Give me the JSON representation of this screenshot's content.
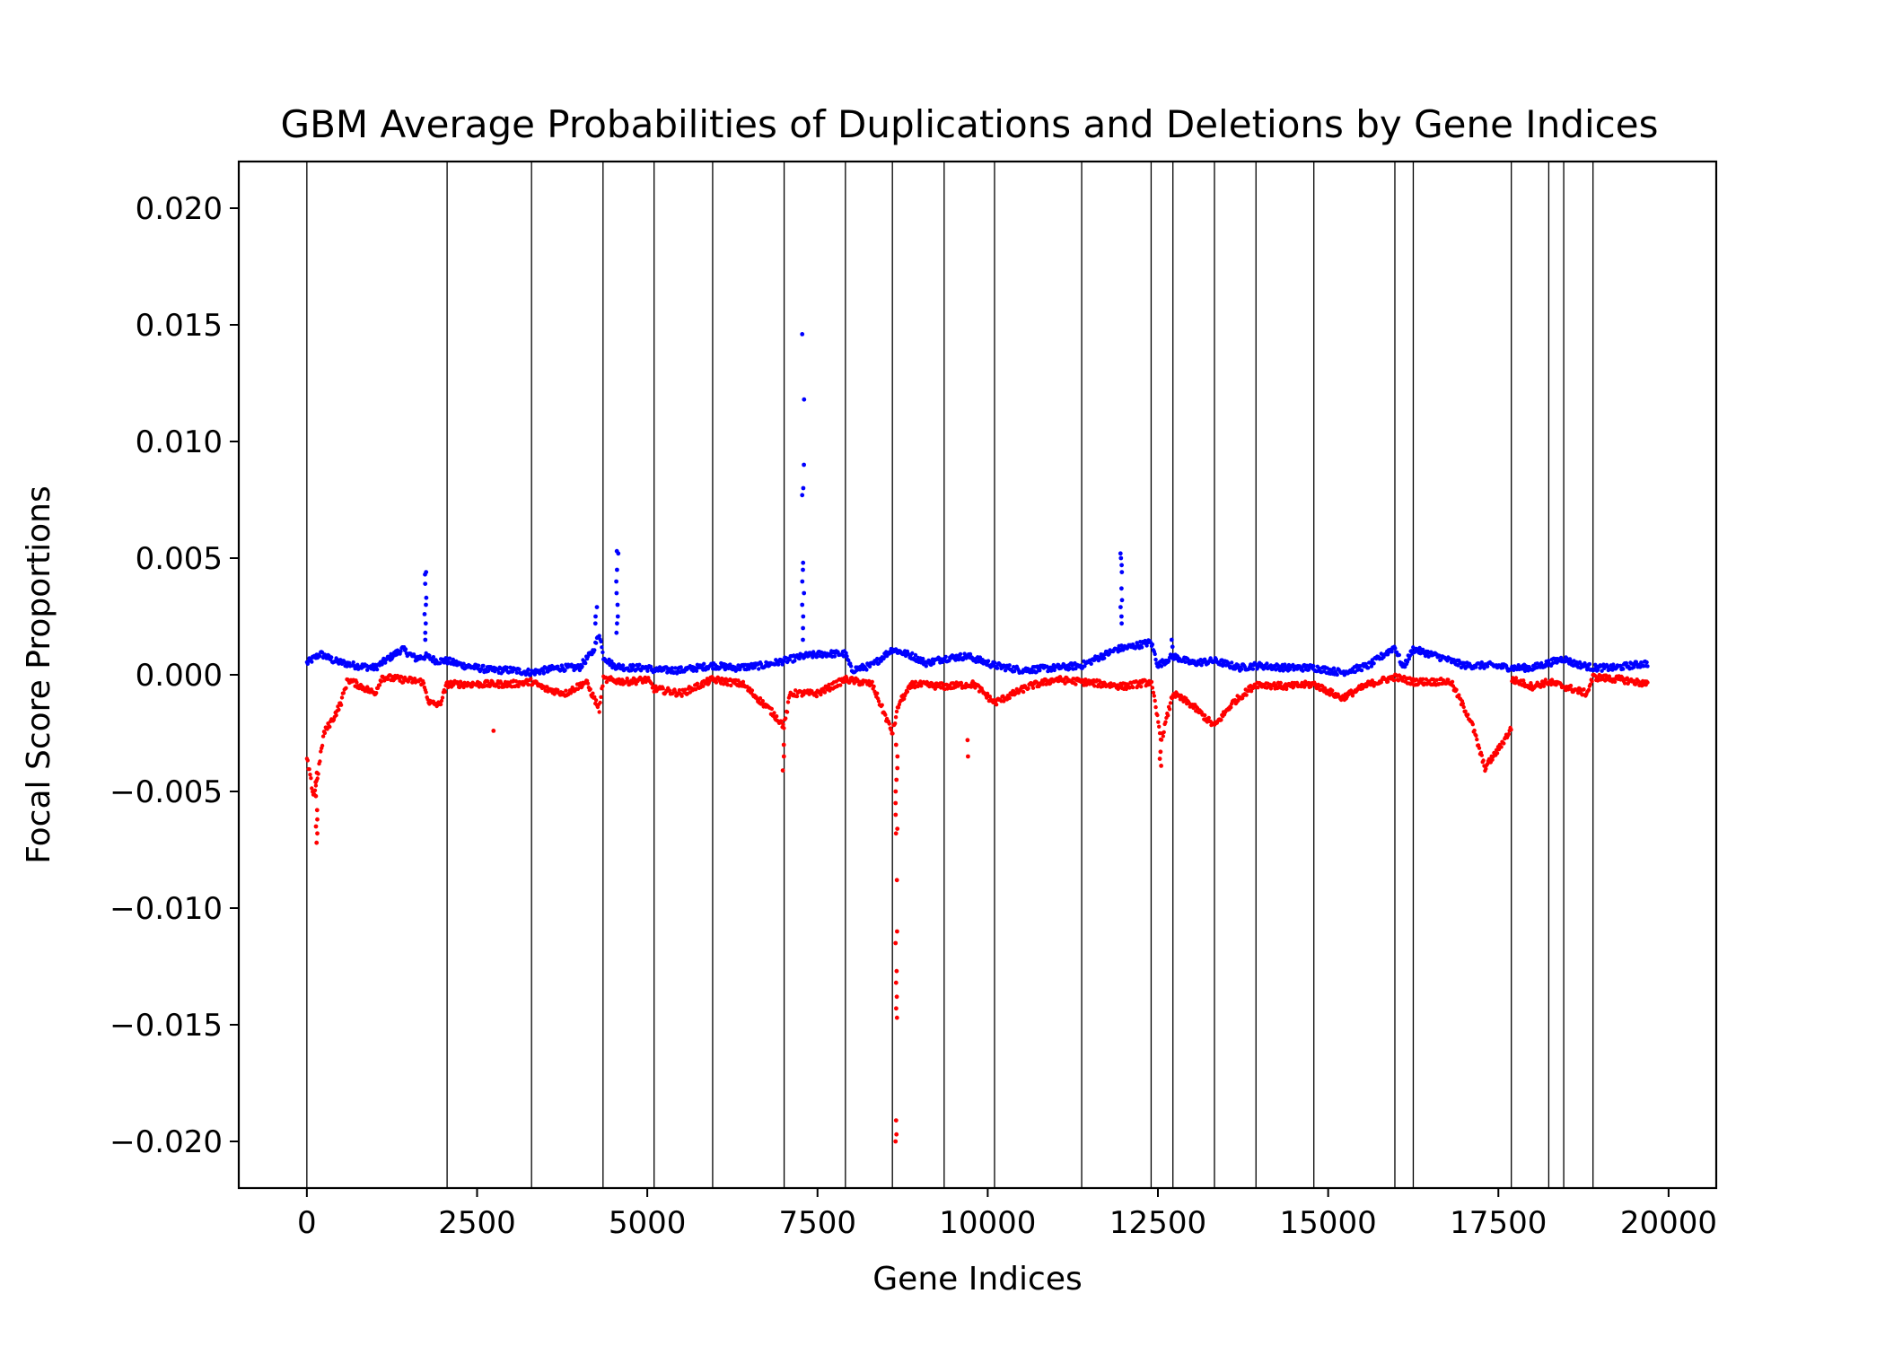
{
  "chart_data": {
    "type": "scatter",
    "title": "GBM Average Probabilities of Duplications and Deletions by Gene Indices",
    "xlabel": "Gene Indices",
    "ylabel": "Focal Score Proportions",
    "xlim": [
      -1000,
      20700
    ],
    "ylim": [
      -0.022,
      0.022
    ],
    "xticks": [
      0,
      2500,
      5000,
      7500,
      10000,
      12500,
      15000,
      17500,
      20000
    ],
    "xtick_labels": [
      "0",
      "2500",
      "5000",
      "7500",
      "10000",
      "12500",
      "15000",
      "17500",
      "20000"
    ],
    "yticks": [
      -0.02,
      -0.015,
      -0.01,
      -0.005,
      0.0,
      0.005,
      0.01,
      0.015,
      0.02
    ],
    "ytick_labels": [
      "−0.020",
      "−0.015",
      "−0.010",
      "−0.005",
      "0.000",
      "0.005",
      "0.010",
      "0.015",
      "0.020"
    ],
    "chromosome_boundaries": [
      0,
      2060,
      3300,
      4350,
      5100,
      5960,
      7010,
      7910,
      8600,
      9360,
      10100,
      11380,
      12400,
      12720,
      13330,
      13940,
      14790,
      15980,
      16250,
      17690,
      18240,
      18460,
      18890
    ],
    "grid": false,
    "legend": "none",
    "series": [
      {
        "color": "#0000ff",
        "baseline": [
          [
            0,
            0.0005
          ],
          [
            200,
            0.0009
          ],
          [
            400,
            0.0006
          ],
          [
            700,
            0.0004
          ],
          [
            1000,
            0.0003
          ],
          [
            1200,
            0.0007
          ],
          [
            1400,
            0.0011
          ],
          [
            1600,
            0.0007
          ],
          [
            1750,
            0.0008
          ],
          [
            1900,
            0.0006
          ],
          [
            2060,
            0.0006
          ],
          [
            2300,
            0.0004
          ],
          [
            2700,
            0.0002
          ],
          [
            3000,
            0.0002
          ],
          [
            3300,
            0.0001
          ],
          [
            3700,
            0.0003
          ],
          [
            4000,
            0.0003
          ],
          [
            4200,
            0.001
          ],
          [
            4300,
            0.0018
          ],
          [
            4350,
            0.0008
          ],
          [
            4500,
            0.0004
          ],
          [
            4700,
            0.0003
          ],
          [
            5000,
            0.0003
          ],
          [
            5100,
            0.0002
          ],
          [
            5500,
            0.0002
          ],
          [
            5960,
            0.0004
          ],
          [
            6300,
            0.0003
          ],
          [
            6700,
            0.0004
          ],
          [
            7010,
            0.0006
          ],
          [
            7300,
            0.0008
          ],
          [
            7600,
            0.0009
          ],
          [
            7910,
            0.0009
          ],
          [
            8000,
            0.0002
          ],
          [
            8300,
            0.0004
          ],
          [
            8600,
            0.0011
          ],
          [
            8900,
            0.0008
          ],
          [
            9100,
            0.0005
          ],
          [
            9360,
            0.0007
          ],
          [
            9700,
            0.0008
          ],
          [
            10100,
            0.0004
          ],
          [
            10500,
            0.0002
          ],
          [
            11000,
            0.0003
          ],
          [
            11380,
            0.0004
          ],
          [
            11600,
            0.0007
          ],
          [
            11900,
            0.0011
          ],
          [
            12100,
            0.0012
          ],
          [
            12400,
            0.0014
          ],
          [
            12500,
            0.0004
          ],
          [
            12720,
            0.0008
          ],
          [
            13000,
            0.0005
          ],
          [
            13330,
            0.0006
          ],
          [
            13700,
            0.0003
          ],
          [
            13940,
            0.0004
          ],
          [
            14400,
            0.0003
          ],
          [
            14790,
            0.0003
          ],
          [
            15200,
            0.0001
          ],
          [
            15600,
            0.0004
          ],
          [
            15980,
            0.0012
          ],
          [
            16100,
            0.0003
          ],
          [
            16250,
            0.0011
          ],
          [
            16600,
            0.0008
          ],
          [
            17000,
            0.0004
          ],
          [
            17400,
            0.0004
          ],
          [
            17690,
            0.0003
          ],
          [
            18000,
            0.0003
          ],
          [
            18240,
            0.0005
          ],
          [
            18460,
            0.0007
          ],
          [
            18600,
            0.0005
          ],
          [
            18890,
            0.0003
          ],
          [
            19200,
            0.0003
          ],
          [
            19700,
            0.0005
          ]
        ],
        "spikes": [
          {
            "x": 1740,
            "values": [
              0.0044,
              0.0043,
              0.0039,
              0.0033,
              0.003,
              0.0026,
              0.0022,
              0.0018,
              0.0015
            ]
          },
          {
            "x": 4250,
            "values": [
              0.0029,
              0.0025,
              0.0022
            ]
          },
          {
            "x": 4560,
            "values": [
              0.0053,
              0.0052,
              0.0045,
              0.004,
              0.0035,
              0.003,
              0.0025,
              0.0022,
              0.0018
            ]
          },
          {
            "x": 7290,
            "values": [
              0.0146,
              0.0118,
              0.009,
              0.008,
              0.0077,
              0.0048,
              0.0045,
              0.004,
              0.0035,
              0.003,
              0.0025,
              0.002,
              0.0015
            ]
          },
          {
            "x": 11960,
            "values": [
              0.0052,
              0.005,
              0.0047,
              0.0044,
              0.0037,
              0.0032,
              0.0029,
              0.0025,
              0.0022
            ]
          },
          {
            "x": 12700,
            "values": [
              0.0015,
              0.0012
            ]
          }
        ]
      },
      {
        "color": "#ff0000",
        "baseline": [
          [
            0,
            -0.0036
          ],
          [
            100,
            -0.0052
          ],
          [
            150,
            -0.0045
          ],
          [
            250,
            -0.0025
          ],
          [
            400,
            -0.0018
          ],
          [
            500,
            -0.0012
          ],
          [
            600,
            -0.0002
          ],
          [
            800,
            -0.0005
          ],
          [
            1000,
            -0.0008
          ],
          [
            1100,
            -0.0001
          ],
          [
            1400,
            -0.0002
          ],
          [
            1700,
            -0.0003
          ],
          [
            1800,
            -0.0012
          ],
          [
            1950,
            -0.0013
          ],
          [
            2060,
            -0.0004
          ],
          [
            2400,
            -0.0004
          ],
          [
            3000,
            -0.0004
          ],
          [
            3300,
            -0.0003
          ],
          [
            3500,
            -0.0006
          ],
          [
            3800,
            -0.0008
          ],
          [
            4100,
            -0.0003
          ],
          [
            4300,
            -0.0015
          ],
          [
            4350,
            -0.0002
          ],
          [
            4700,
            -0.0003
          ],
          [
            5000,
            -0.0002
          ],
          [
            5100,
            -0.0006
          ],
          [
            5500,
            -0.0008
          ],
          [
            5960,
            -0.0002
          ],
          [
            6400,
            -0.0004
          ],
          [
            6800,
            -0.0015
          ],
          [
            7010,
            -0.0022
          ],
          [
            7100,
            -0.0008
          ],
          [
            7500,
            -0.0008
          ],
          [
            7910,
            -0.0002
          ],
          [
            8300,
            -0.0004
          ],
          [
            8600,
            -0.0025
          ],
          [
            8700,
            -0.0012
          ],
          [
            8900,
            -0.0004
          ],
          [
            9360,
            -0.0005
          ],
          [
            9800,
            -0.0004
          ],
          [
            10100,
            -0.0012
          ],
          [
            10600,
            -0.0005
          ],
          [
            11000,
            -0.0002
          ],
          [
            11380,
            -0.0003
          ],
          [
            11700,
            -0.0004
          ],
          [
            12000,
            -0.0005
          ],
          [
            12400,
            -0.0003
          ],
          [
            12550,
            -0.0028
          ],
          [
            12720,
            -0.0008
          ],
          [
            13000,
            -0.0013
          ],
          [
            13330,
            -0.0022
          ],
          [
            13600,
            -0.0012
          ],
          [
            13940,
            -0.0004
          ],
          [
            14400,
            -0.0005
          ],
          [
            14790,
            -0.0004
          ],
          [
            15200,
            -0.001
          ],
          [
            15600,
            -0.0004
          ],
          [
            15980,
            -0.0001
          ],
          [
            16250,
            -0.0003
          ],
          [
            16800,
            -0.0003
          ],
          [
            17100,
            -0.002
          ],
          [
            17300,
            -0.004
          ],
          [
            17500,
            -0.0032
          ],
          [
            17690,
            -0.0023
          ],
          [
            17700,
            -0.0002
          ],
          [
            18000,
            -0.0005
          ],
          [
            18240,
            -0.0003
          ],
          [
            18460,
            -0.0005
          ],
          [
            18800,
            -0.0008
          ],
          [
            18890,
            -0.0001
          ],
          [
            19300,
            -0.0002
          ],
          [
            19700,
            -0.0004
          ]
        ],
        "spikes": [
          {
            "x": 140,
            "values": [
              -0.0072,
              -0.0068,
              -0.0065,
              -0.0062,
              -0.0058,
              -0.0052,
              -0.0046,
              -0.0042
            ]
          },
          {
            "x": 2750,
            "values": [
              -0.0024
            ]
          },
          {
            "x": 7000,
            "values": [
              -0.0041,
              -0.0035,
              -0.003
            ]
          },
          {
            "x": 8660,
            "values": [
              -0.02,
              -0.0197,
              -0.0191,
              -0.0147,
              -0.0143,
              -0.0138,
              -0.0132,
              -0.0127,
              -0.0115,
              -0.011,
              -0.0088,
              -0.0068,
              -0.0066,
              -0.006,
              -0.0055,
              -0.005,
              -0.0045,
              -0.004,
              -0.0035,
              -0.003
            ]
          },
          {
            "x": 9700,
            "values": [
              -0.0035,
              -0.0028
            ]
          },
          {
            "x": 12540,
            "values": [
              -0.0039,
              -0.0036,
              -0.0033
            ]
          }
        ]
      }
    ]
  }
}
